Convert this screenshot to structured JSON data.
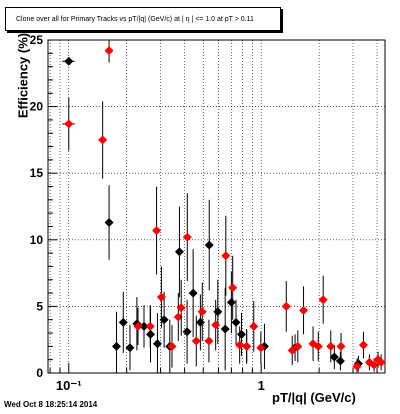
{
  "chart_data": {
    "type": "scatter",
    "title": "Clone over all for Primary Tracks vs pT/|q| (GeV/c) at | η | <= 1.0 at pT > 0.11",
    "xlabel": "pT/|q| (GeV/c)",
    "ylabel": "Efficiency (%)",
    "xscale": "log",
    "xlim": [
      0.078,
      4.4
    ],
    "ylim": [
      0,
      25
    ],
    "grid": true,
    "x_tick_labels": [
      "10⁻¹",
      "1"
    ],
    "y_tick_labels": [
      "0",
      "5",
      "10",
      "15",
      "20",
      "25"
    ],
    "series": [
      {
        "color": "#000000",
        "points": [
          {
            "x": 0.1,
            "y": 23.4,
            "err": 0.0,
            "xerr": 0.0074
          },
          {
            "x": 0.162,
            "y": 11.3,
            "err": 2.8
          },
          {
            "x": 0.177,
            "y": 2.0,
            "err": 2.6
          },
          {
            "x": 0.192,
            "y": 3.8,
            "err": 2.3
          },
          {
            "x": 0.208,
            "y": 1.9,
            "err": 1.7
          },
          {
            "x": 0.226,
            "y": 3.7,
            "err": 2.0
          },
          {
            "x": 0.246,
            "y": 3.5,
            "err": 1.6
          },
          {
            "x": 0.266,
            "y": 2.9,
            "err": 2.1
          },
          {
            "x": 0.289,
            "y": 2.2,
            "err": 2.3
          },
          {
            "x": 0.313,
            "y": 4.0,
            "err": 2.1
          },
          {
            "x": 0.335,
            "y": 2.0,
            "err": 2.0
          },
          {
            "x": 0.376,
            "y": 9.1,
            "err": 3.4
          },
          {
            "x": 0.412,
            "y": 3.1,
            "err": 2.4
          },
          {
            "x": 0.443,
            "y": 6.0,
            "err": 3.3
          },
          {
            "x": 0.483,
            "y": 3.8,
            "err": 2.1
          },
          {
            "x": 0.537,
            "y": 9.6,
            "err": 3.4
          },
          {
            "x": 0.595,
            "y": 4.6,
            "err": 2.4
          },
          {
            "x": 0.65,
            "y": 3.3,
            "err": 3.1
          },
          {
            "x": 0.7,
            "y": 5.3,
            "err": 2.3
          },
          {
            "x": 0.74,
            "y": 3.8,
            "err": 1.7
          },
          {
            "x": 0.79,
            "y": 2.9,
            "err": 1.6
          },
          {
            "x": 0.84,
            "y": 2.0,
            "err": 1.3
          },
          {
            "x": 1.04,
            "y": 2.0,
            "err": 1.7
          },
          {
            "x": 1.5,
            "y": 1.9,
            "err": 1.0
          },
          {
            "x": 2.4,
            "y": 1.2,
            "err": 0.9
          },
          {
            "x": 2.58,
            "y": 0.9,
            "err": 0.7
          },
          {
            "x": 3.2,
            "y": 0.7,
            "err": 0.6
          }
        ]
      },
      {
        "color": "#ff0000",
        "points": [
          {
            "x": 0.1,
            "y": 18.7,
            "err": 2.0,
            "xerr": 0.0074
          },
          {
            "x": 0.15,
            "y": 17.5,
            "err": 2.9
          },
          {
            "x": 0.162,
            "y": 24.2,
            "err": 0.9
          },
          {
            "x": 0.229,
            "y": 3.5,
            "err": 1.4
          },
          {
            "x": 0.265,
            "y": 3.5,
            "err": 1.6
          },
          {
            "x": 0.286,
            "y": 10.7,
            "err": 3.3
          },
          {
            "x": 0.303,
            "y": 5.7,
            "err": 2.3
          },
          {
            "x": 0.344,
            "y": 2.0,
            "err": 1.6
          },
          {
            "x": 0.371,
            "y": 4.2,
            "err": 1.8
          },
          {
            "x": 0.384,
            "y": 4.9,
            "err": 2.1
          },
          {
            "x": 0.413,
            "y": 10.2,
            "err": 3.3
          },
          {
            "x": 0.46,
            "y": 2.4,
            "err": 1.9
          },
          {
            "x": 0.494,
            "y": 4.6,
            "err": 2.2
          },
          {
            "x": 0.535,
            "y": 2.4,
            "err": 1.6
          },
          {
            "x": 0.58,
            "y": 3.6,
            "err": 1.9
          },
          {
            "x": 0.655,
            "y": 8.8,
            "err": 3.0
          },
          {
            "x": 0.711,
            "y": 6.4,
            "err": 2.4
          },
          {
            "x": 0.773,
            "y": 2.1,
            "err": 1.4
          },
          {
            "x": 0.841,
            "y": 2.0,
            "err": 1.2
          },
          {
            "x": 0.915,
            "y": 3.5,
            "err": 1.9
          },
          {
            "x": 0.996,
            "y": 1.9,
            "err": 1.2
          },
          {
            "x": 1.35,
            "y": 5.0,
            "err": 1.9
          },
          {
            "x": 1.45,
            "y": 1.7,
            "err": 1.1
          },
          {
            "x": 1.55,
            "y": 2.0,
            "err": 1.2
          },
          {
            "x": 1.66,
            "y": 4.7,
            "err": 1.8
          },
          {
            "x": 1.86,
            "y": 2.2,
            "err": 1.3
          },
          {
            "x": 1.98,
            "y": 2.0,
            "err": 1.1
          },
          {
            "x": 2.1,
            "y": 5.5,
            "err": 1.8
          },
          {
            "x": 2.3,
            "y": 2.0,
            "err": 1.2
          },
          {
            "x": 2.6,
            "y": 2.0,
            "err": 1.0
          },
          {
            "x": 3.15,
            "y": 0.5,
            "err": 0.6
          },
          {
            "x": 3.4,
            "y": 2.1,
            "err": 1.0
          },
          {
            "x": 3.65,
            "y": 0.8,
            "err": 0.6
          },
          {
            "x": 3.86,
            "y": 0.6,
            "err": 0.5
          },
          {
            "x": 4.05,
            "y": 1.0,
            "err": 0.6
          },
          {
            "x": 4.2,
            "y": 0.8,
            "err": 0.6
          }
        ]
      }
    ]
  },
  "footer": {
    "timestamp": "Wed Oct  8 18:25:14 2014"
  }
}
